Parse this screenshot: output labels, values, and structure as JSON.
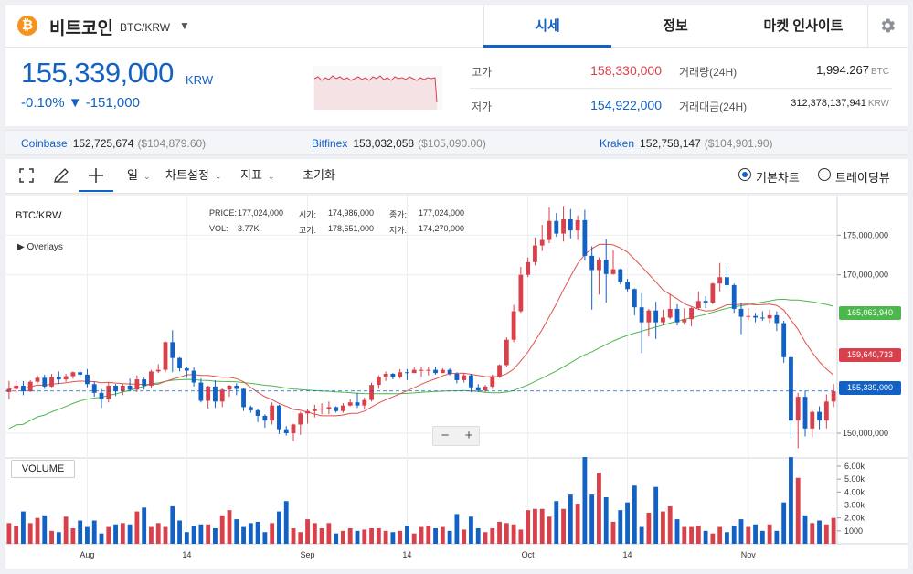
{
  "header": {
    "coin_symbol": "₿",
    "coin_name": "비트코인",
    "pair": "BTC/KRW",
    "caret": "▼",
    "tabs": [
      {
        "label": "시세"
      },
      {
        "label": "정보"
      },
      {
        "label": "마켓 인사이트"
      }
    ],
    "accent_color": "#1261c4",
    "settings_icon": "gear-icon"
  },
  "price": {
    "current": "155,339,000",
    "unit": "KRW",
    "change": "-0.10% ▼ -151,000",
    "high_label": "고가",
    "high_value": "158,330,000",
    "low_label": "저가",
    "low_value": "154,922,000",
    "volume_label": "거래량(24H)",
    "volume_value": "1,994.267",
    "volume_unit": "BTC",
    "amount_label": "거래대금(24H)",
    "amount_value": "312,378,137,941",
    "amount_unit": "KRW"
  },
  "exchanges": [
    {
      "name": "Coinbase",
      "krw": "152,725,674",
      "usd": "($104,879.60)"
    },
    {
      "name": "Bitfinex",
      "krw": "153,032,058",
      "usd": "($105,090.00)"
    },
    {
      "name": "Kraken",
      "krw": "152,758,147",
      "usd": "($104,901.90)"
    }
  ],
  "toolbar": {
    "period": "일",
    "chart_settings": "차트설정",
    "indicators": "지표",
    "reset": "초기화",
    "basic_chart": "기본차트",
    "tradingview": "트레이딩뷰"
  },
  "chart": {
    "pair_label": "BTC/KRW",
    "overlays_label": "▶ Overlays",
    "info": {
      "price_label": "PRICE:",
      "price_value": "177,024,000",
      "vol_label": "VOL:",
      "vol_value": "3.77K",
      "open_label": "시가:",
      "open_value": "174,986,000",
      "high_label": "고가:",
      "high_value": "178,651,000",
      "close_label": "종가:",
      "close_value": "177,024,000",
      "low_label": "저가:",
      "low_value": "174,270,000"
    },
    "zoom_minus": "−",
    "zoom_plus": "+",
    "volume_button": "VOLUME",
    "price_ticks": [
      "175,000,000",
      "170,000,000",
      "150,000,000"
    ],
    "volume_ticks": [
      "6.00k",
      "5.00k",
      "4.00k",
      "3.00k",
      "2.00k",
      "1000"
    ],
    "date_ticks": [
      "Aug",
      "14",
      "Sep",
      "14",
      "Oct",
      "14",
      "Nov"
    ],
    "tags": {
      "ma_long": "165,063,940",
      "ma_short": "159,640,733",
      "current": "155,339,000"
    },
    "colors": {
      "up": "#d8414b",
      "down": "#1261c4",
      "ma_short": "#e0524d",
      "ma_long": "#4cb84c"
    }
  },
  "chart_data": {
    "type": "candlestick",
    "y_axis": {
      "min": 147000000,
      "max": 180000000,
      "ticks": [
        150000000,
        170000000,
        175000000
      ]
    },
    "candles": [
      [
        155200000,
        155600000,
        156600000,
        154300000,
        1.6
      ],
      [
        155600000,
        156000000,
        156600000,
        155100000,
        1.4
      ],
      [
        156000000,
        155300000,
        156600000,
        154800000,
        2.5
      ],
      [
        155300000,
        156500000,
        156700000,
        155200000,
        1.6
      ],
      [
        156500000,
        157000000,
        157300000,
        156300000,
        2.0
      ],
      [
        157000000,
        155900000,
        157400000,
        155600000,
        2.2
      ],
      [
        155900000,
        157100000,
        157500000,
        155800000,
        1.0
      ],
      [
        157100000,
        156800000,
        157800000,
        156200000,
        0.9
      ],
      [
        156800000,
        157200000,
        157500000,
        156500000,
        2.1
      ],
      [
        157200000,
        157700000,
        157800000,
        156900000,
        1.2
      ],
      [
        157700000,
        157400000,
        157900000,
        157000000,
        1.8
      ],
      [
        157400000,
        156200000,
        158100000,
        155800000,
        1.3
      ],
      [
        156200000,
        155100000,
        156500000,
        154600000,
        1.8
      ],
      [
        155100000,
        154300000,
        155600000,
        153200000,
        0.8
      ],
      [
        154300000,
        156000000,
        156400000,
        153900000,
        1.3
      ],
      [
        156000000,
        155300000,
        156200000,
        154700000,
        1.5
      ],
      [
        155300000,
        156000000,
        156300000,
        154800000,
        1.6
      ],
      [
        156000000,
        155500000,
        156900000,
        155300000,
        1.5
      ],
      [
        155500000,
        156800000,
        157300000,
        155200000,
        2.5
      ],
      [
        156800000,
        156000000,
        157000000,
        155500000,
        2.8
      ],
      [
        156000000,
        157800000,
        158000000,
        155700000,
        1.3
      ],
      [
        157800000,
        158000000,
        158700000,
        157600000,
        1.6
      ],
      [
        158000000,
        161500000,
        161600000,
        157700000,
        1.3
      ],
      [
        161500000,
        159500000,
        163000000,
        157700000,
        2.9
      ],
      [
        159500000,
        158200000,
        159600000,
        157800000,
        1.8
      ],
      [
        158200000,
        157900000,
        158400000,
        157000000,
        0.9
      ],
      [
        157900000,
        156400000,
        158300000,
        155900000,
        1.4
      ],
      [
        156400000,
        154100000,
        156900000,
        153900000,
        1.5
      ],
      [
        154100000,
        155900000,
        156000000,
        153100000,
        1.5
      ],
      [
        155900000,
        154000000,
        156700000,
        153200000,
        1.2
      ],
      [
        154000000,
        155500000,
        155700000,
        153300000,
        2.2
      ],
      [
        155500000,
        156000000,
        156100000,
        154600000,
        2.6
      ],
      [
        156000000,
        155600000,
        156300000,
        154800000,
        1.9
      ],
      [
        155600000,
        153300000,
        155700000,
        152800000,
        1.3
      ],
      [
        153300000,
        152900000,
        153500000,
        152600000,
        1.6
      ],
      [
        152900000,
        152200000,
        153100000,
        151400000,
        1.7
      ],
      [
        152200000,
        151600000,
        152400000,
        150700000,
        0.9
      ],
      [
        151600000,
        153500000,
        153900000,
        151100000,
        1.6
      ],
      [
        153500000,
        150500000,
        153600000,
        149900000,
        2.5
      ],
      [
        150500000,
        150000000,
        150900000,
        149700000,
        3.3
      ],
      [
        150000000,
        151100000,
        151200000,
        149000000,
        1.2
      ],
      [
        151100000,
        152500000,
        152700000,
        149800000,
        0.9
      ],
      [
        152500000,
        152800000,
        153000000,
        151200000,
        1.9
      ],
      [
        152800000,
        153000000,
        153600000,
        152000000,
        1.6
      ],
      [
        153000000,
        153100000,
        153800000,
        152400000,
        1.2
      ],
      [
        153100000,
        153300000,
        154000000,
        152400000,
        1.6
      ],
      [
        153300000,
        152800000,
        153400000,
        152600000,
        0.8
      ],
      [
        152800000,
        153500000,
        153800000,
        152600000,
        1.0
      ],
      [
        153500000,
        153900000,
        154300000,
        153400000,
        1.2
      ],
      [
        153900000,
        153500000,
        155100000,
        153200000,
        1.0
      ],
      [
        153500000,
        154200000,
        154500000,
        153000000,
        1.1
      ],
      [
        154200000,
        156100000,
        156400000,
        154000000,
        1.2
      ],
      [
        156100000,
        157100000,
        157300000,
        155600000,
        1.2
      ],
      [
        157100000,
        157500000,
        157800000,
        156600000,
        1.0
      ],
      [
        157500000,
        157100000,
        157600000,
        156800000,
        0.9
      ],
      [
        157100000,
        157700000,
        158100000,
        156900000,
        1.0
      ],
      [
        157700000,
        157600000,
        158100000,
        156700000,
        1.4
      ],
      [
        157600000,
        158000000,
        158300000,
        157600000,
        0.8
      ],
      [
        158000000,
        158000000,
        158400000,
        157100000,
        1.3
      ],
      [
        158000000,
        158000000,
        158400000,
        157300000,
        1.4
      ],
      [
        158000000,
        157600000,
        158400000,
        157400000,
        1.2
      ],
      [
        157600000,
        158000000,
        158200000,
        157700000,
        1.3
      ],
      [
        158000000,
        157500000,
        158200000,
        157300000,
        1.0
      ],
      [
        157500000,
        156700000,
        157700000,
        156300000,
        2.3
      ],
      [
        156700000,
        157300000,
        157600000,
        156400000,
        1.1
      ],
      [
        157300000,
        155800000,
        157500000,
        155200000,
        2.1
      ],
      [
        155800000,
        155400000,
        156200000,
        155200000,
        1.2
      ],
      [
        155400000,
        155900000,
        156100000,
        155200000,
        0.9
      ],
      [
        155900000,
        157200000,
        157400000,
        155600000,
        1.2
      ],
      [
        157200000,
        158600000,
        158700000,
        157000000,
        1.7
      ],
      [
        158600000,
        161800000,
        162100000,
        158300000,
        1.6
      ],
      [
        161800000,
        165400000,
        166200000,
        161500000,
        1.5
      ],
      [
        165400000,
        170000000,
        171000000,
        165200000,
        1.1
      ],
      [
        170000000,
        171600000,
        172200000,
        169700000,
        2.6
      ],
      [
        171600000,
        173700000,
        174700000,
        171200000,
        2.7
      ],
      [
        173700000,
        174400000,
        176300000,
        173000000,
        2.7
      ],
      [
        174400000,
        176800000,
        178500000,
        174000000,
        2.1
      ],
      [
        176800000,
        175200000,
        177800000,
        174800000,
        3.3
      ],
      [
        175200000,
        177000000,
        178700000,
        174200000,
        2.7
      ],
      [
        177000000,
        175600000,
        178300000,
        174600000,
        3.8
      ],
      [
        175600000,
        176900000,
        177500000,
        174400000,
        3.1
      ],
      [
        176900000,
        172400000,
        178200000,
        171800000,
        6.7
      ],
      [
        172400000,
        170600000,
        173600000,
        165600000,
        3.8
      ],
      [
        170600000,
        171900000,
        172200000,
        167500000,
        5.5
      ],
      [
        171900000,
        170100000,
        174500000,
        166500000,
        3.6
      ],
      [
        170100000,
        170700000,
        173100000,
        170000000,
        1.7
      ],
      [
        170700000,
        169100000,
        170800000,
        168800000,
        2.6
      ],
      [
        169100000,
        168200000,
        169500000,
        167900000,
        3.2
      ],
      [
        168200000,
        165900000,
        168300000,
        164900000,
        4.5
      ],
      [
        165900000,
        164000000,
        167700000,
        160100000,
        1.3
      ],
      [
        164000000,
        165500000,
        165700000,
        162200000,
        2.4
      ],
      [
        165500000,
        164000000,
        166600000,
        161900000,
        4.4
      ],
      [
        164000000,
        164600000,
        165600000,
        163600000,
        2.5
      ],
      [
        164600000,
        165700000,
        167600000,
        164400000,
        2.9
      ],
      [
        165700000,
        164000000,
        166300000,
        163600000,
        1.9
      ],
      [
        164000000,
        164400000,
        165800000,
        163700000,
        1.3
      ],
      [
        164400000,
        165800000,
        165900000,
        163500000,
        1.3
      ],
      [
        165800000,
        166700000,
        167900000,
        165600000,
        1.4
      ],
      [
        166700000,
        166500000,
        167300000,
        165800000,
        1.0
      ],
      [
        166500000,
        168900000,
        169000000,
        166300000,
        0.8
      ],
      [
        168900000,
        169700000,
        171500000,
        167900000,
        1.3
      ],
      [
        169700000,
        168700000,
        171100000,
        168300000,
        0.9
      ],
      [
        168700000,
        165700000,
        168900000,
        165200000,
        1.4
      ],
      [
        165700000,
        164700000,
        166500000,
        162500000,
        1.9
      ],
      [
        164700000,
        164800000,
        165800000,
        164300000,
        1.3
      ],
      [
        164800000,
        164600000,
        165200000,
        164000000,
        1.5
      ],
      [
        164600000,
        164500000,
        165400000,
        164200000,
        1.0
      ],
      [
        164500000,
        164900000,
        165600000,
        163900000,
        1.5
      ],
      [
        164900000,
        163900000,
        165400000,
        162900000,
        1.0
      ],
      [
        163900000,
        159600000,
        164200000,
        158900000,
        3.2
      ],
      [
        159600000,
        151600000,
        159900000,
        149400000,
        6.7
      ],
      [
        151600000,
        154600000,
        155100000,
        148100000,
        5.1
      ],
      [
        154600000,
        150600000,
        155400000,
        149600000,
        2.2
      ],
      [
        150600000,
        152700000,
        152900000,
        149500000,
        1.6
      ],
      [
        152700000,
        151600000,
        153400000,
        150500000,
        1.8
      ],
      [
        151600000,
        154000000,
        154900000,
        150600000,
        1.5
      ],
      [
        154000000,
        155300000,
        156200000,
        153300000,
        2.0
      ]
    ],
    "candle_fields": [
      "open",
      "close",
      "high",
      "low",
      "volume_k"
    ],
    "volume_axis": {
      "min": 0,
      "max": 6000,
      "ticks": [
        1000,
        2000,
        3000,
        4000,
        5000,
        6000
      ]
    },
    "x_labels": [
      "Aug",
      "14",
      "Sep",
      "14",
      "Oct",
      "14",
      "Nov"
    ],
    "x_label_candle_index": [
      11,
      25,
      42,
      56,
      73,
      87,
      104
    ],
    "series": [
      {
        "name": "ma_short",
        "type": "moving_average"
      },
      {
        "name": "ma_long",
        "type": "moving_average"
      }
    ],
    "latest": {
      "ma_long": 165063940,
      "ma_short": 159640733,
      "price": 155339000
    }
  }
}
